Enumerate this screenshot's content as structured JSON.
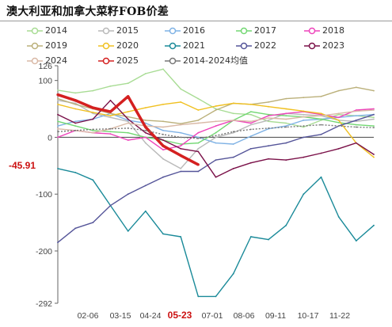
{
  "title": "澳大利亚和加拿大菜籽FOB价差",
  "chart_data": {
    "type": "line",
    "title": "澳大利亚和加拿大菜籽FOB价差",
    "xlabel": "",
    "ylabel": "",
    "ylim": [
      -292,
      126
    ],
    "yticks": [
      -292,
      -200,
      -100,
      0,
      100,
      126
    ],
    "xticks": [
      "02-06",
      "03-15",
      "04-24",
      "05-23",
      "07-01",
      "08-06",
      "09-11",
      "10-17",
      "11-22"
    ],
    "highlight_x_label": "05-23",
    "current_value_label": "-45.91",
    "legend_position": "top",
    "grid": false,
    "series": [
      {
        "name": "2014",
        "color": "#a8dc94",
        "values": [
          83,
          78,
          82,
          90,
          95,
          112,
          120,
          85,
          68,
          50,
          42,
          40,
          28,
          25,
          18,
          30,
          40,
          38,
          35
        ]
      },
      {
        "name": "2015",
        "color": "#b9b9b9",
        "values": [
          65,
          60,
          42,
          35,
          28,
          -10,
          -38,
          -55,
          -20,
          0,
          8,
          22,
          30,
          42,
          40,
          38,
          30,
          28,
          32
        ]
      },
      {
        "name": "2016",
        "color": "#7fb2e5",
        "values": [
          20,
          28,
          32,
          42,
          30,
          25,
          12,
          8,
          0,
          -10,
          -12,
          2,
          15,
          20,
          30,
          32,
          35,
          38,
          40
        ]
      },
      {
        "name": "2017",
        "color": "#72d772",
        "values": [
          28,
          20,
          12,
          10,
          8,
          0,
          -5,
          -12,
          -10,
          8,
          30,
          45,
          40,
          38,
          36,
          32,
          26,
          22,
          20
        ]
      },
      {
        "name": "2018",
        "color": "#ee44bb",
        "values": [
          0,
          12,
          8,
          6,
          -5,
          0,
          -22,
          -15,
          8,
          20,
          30,
          25,
          38,
          42,
          45,
          40,
          35,
          48,
          50
        ]
      },
      {
        "name": "2019",
        "color": "#bbb07a",
        "values": [
          68,
          58,
          50,
          42,
          36,
          30,
          28,
          24,
          30,
          48,
          60,
          58,
          62,
          68,
          70,
          72,
          82,
          88,
          82
        ]
      },
      {
        "name": "2020",
        "color": "#f0c020",
        "values": [
          58,
          50,
          44,
          38,
          45,
          52,
          58,
          62,
          48,
          55,
          60,
          58,
          54,
          50,
          46,
          42,
          30,
          -10,
          -35
        ]
      },
      {
        "name": "2021",
        "color": "#1a8a99",
        "values": [
          -55,
          -62,
          -75,
          -120,
          -165,
          -130,
          -170,
          -175,
          -280,
          -280,
          -240,
          -175,
          -180,
          -155,
          -100,
          -70,
          -140,
          -182,
          -155
        ]
      },
      {
        "name": "2022",
        "color": "#555599",
        "values": [
          -185,
          -160,
          -150,
          -120,
          -100,
          -85,
          -70,
          -60,
          -60,
          -40,
          -35,
          -20,
          -15,
          -10,
          0,
          5,
          20,
          30,
          40
        ]
      },
      {
        "name": "2023",
        "color": "#7a1048",
        "values": [
          40,
          25,
          32,
          65,
          32,
          8,
          -5,
          -20,
          -25,
          -70,
          -55,
          -45,
          -38,
          -40,
          -35,
          -28,
          -20,
          -10,
          -30
        ]
      },
      {
        "name": "2024",
        "color": "#d9b9a6",
        "values": [
          15,
          12,
          8,
          15,
          25,
          20,
          18,
          22,
          25,
          28,
          30,
          28,
          34,
          32,
          36,
          38,
          42,
          46,
          48
        ]
      },
      {
        "name": "2025",
        "color": "#d42020",
        "values": [
          75,
          65,
          52,
          45,
          72,
          18,
          -15,
          -32,
          -48
        ]
      },
      {
        "name": "2014-2024均值",
        "color": "#777777",
        "values": [
          10,
          12,
          14,
          15,
          16,
          12,
          5,
          0,
          -2,
          3,
          10,
          14,
          16,
          18,
          20,
          22,
          20,
          18,
          17
        ]
      }
    ]
  }
}
